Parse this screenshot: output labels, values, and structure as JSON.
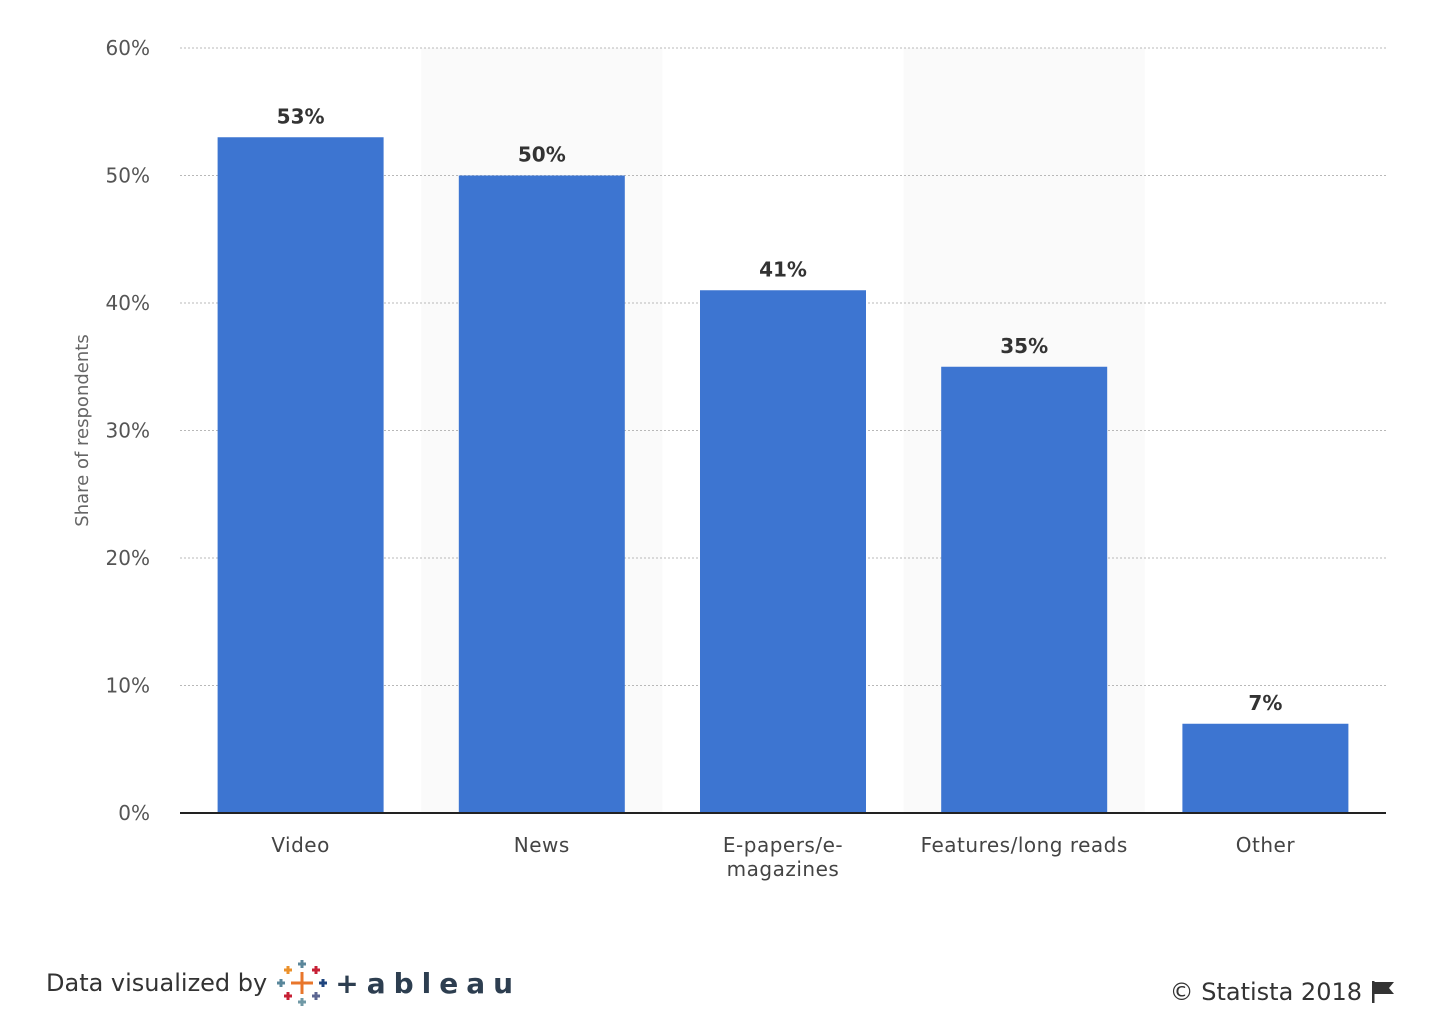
{
  "chart_data": {
    "type": "bar",
    "categories": [
      "Video",
      "News",
      "E-papers/e-magazines",
      "Features/long reads",
      "Other"
    ],
    "category_lines": [
      [
        "Video"
      ],
      [
        "News"
      ],
      [
        "E-papers/e-",
        "magazines"
      ],
      [
        "Features/long reads"
      ],
      [
        "Other"
      ]
    ],
    "values": [
      53,
      50,
      41,
      35,
      7
    ],
    "data_labels": [
      "53%",
      "50%",
      "41%",
      "35%",
      "7%"
    ],
    "ylabel": "Share of respondents",
    "ylim": [
      0,
      60
    ],
    "yticks": [
      0,
      10,
      20,
      30,
      40,
      50,
      60
    ],
    "ytick_labels": [
      "0%",
      "10%",
      "20%",
      "30%",
      "40%",
      "50%",
      "60%"
    ],
    "grid": true,
    "bar_color": "#3d75d1",
    "band_color": "#fafafa"
  },
  "footer": {
    "visualized_by": "Data visualized by",
    "tableau_wordmark": "+ableau",
    "copyright": "© Statista 2018"
  },
  "icons": {
    "tableau_logo": "tableau-cross-icon",
    "flag": "flag-icon"
  }
}
